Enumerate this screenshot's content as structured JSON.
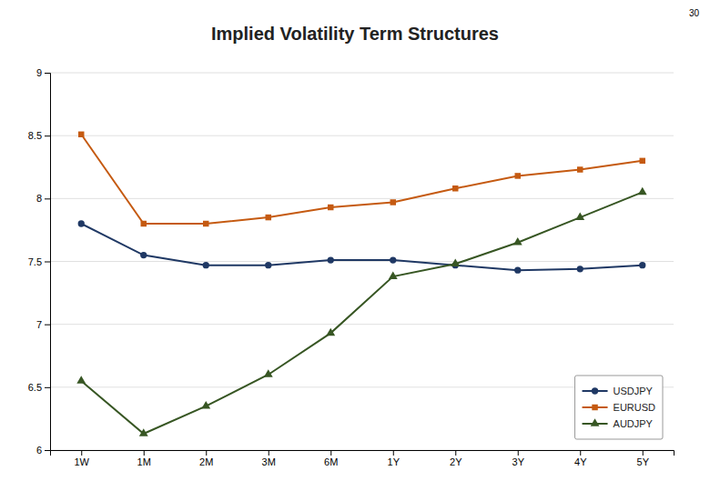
{
  "chart_data": {
    "type": "line",
    "title": "Implied Volatility Term Structures",
    "annotations": [
      "30"
    ],
    "categories": [
      "1W",
      "1M",
      "2M",
      "3M",
      "6M",
      "1Y",
      "2Y",
      "3Y",
      "4Y",
      "5Y"
    ],
    "series": [
      {
        "name": "USDJPY",
        "color": "#1F3864",
        "marker": "circle",
        "values": [
          7.8,
          7.55,
          7.47,
          7.47,
          7.51,
          7.51,
          7.47,
          7.43,
          7.44,
          7.47
        ]
      },
      {
        "name": "EURUSD",
        "color": "#C55A11",
        "marker": "square",
        "values": [
          8.51,
          7.8,
          7.8,
          7.85,
          7.93,
          7.97,
          8.08,
          8.18,
          8.23,
          8.3
        ]
      },
      {
        "name": "AUDJPY",
        "color": "#375623",
        "marker": "triangle",
        "values": [
          6.55,
          6.13,
          6.35,
          6.6,
          6.93,
          7.38,
          7.48,
          7.65,
          7.85,
          8.05
        ]
      }
    ],
    "ylim": [
      6.0,
      9.0
    ],
    "yticks": [
      6,
      6.5,
      7,
      7.5,
      8,
      8.5,
      9
    ],
    "grid": true,
    "legend": "lower right"
  }
}
